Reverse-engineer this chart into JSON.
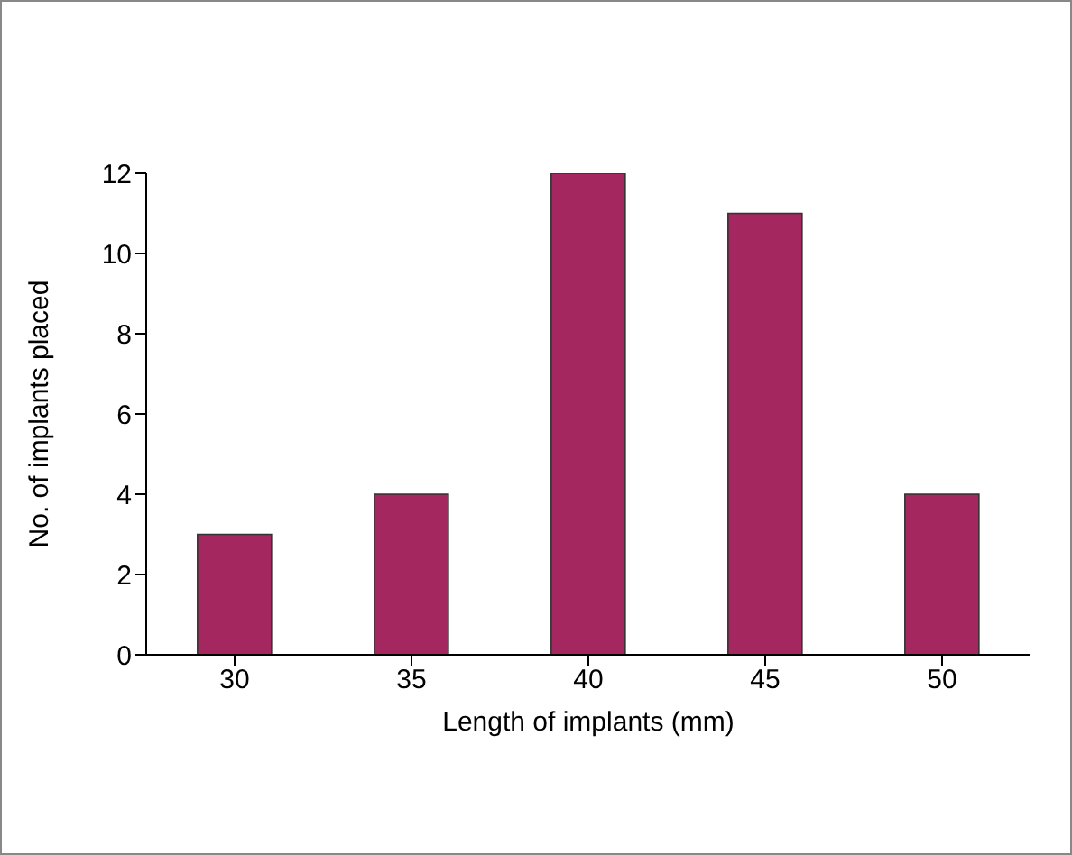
{
  "chart_data": {
    "type": "bar",
    "xlabel": "Length of implants (mm)",
    "ylabel": "No. of implants placed",
    "categories": [
      "30",
      "35",
      "40",
      "45",
      "50"
    ],
    "values": [
      3,
      4,
      12,
      11,
      4
    ],
    "color": "#a52760",
    "ylim": [
      0,
      12
    ],
    "yticks": [
      0,
      2,
      4,
      6,
      8,
      10,
      12
    ],
    "grid": false,
    "legend": false
  }
}
